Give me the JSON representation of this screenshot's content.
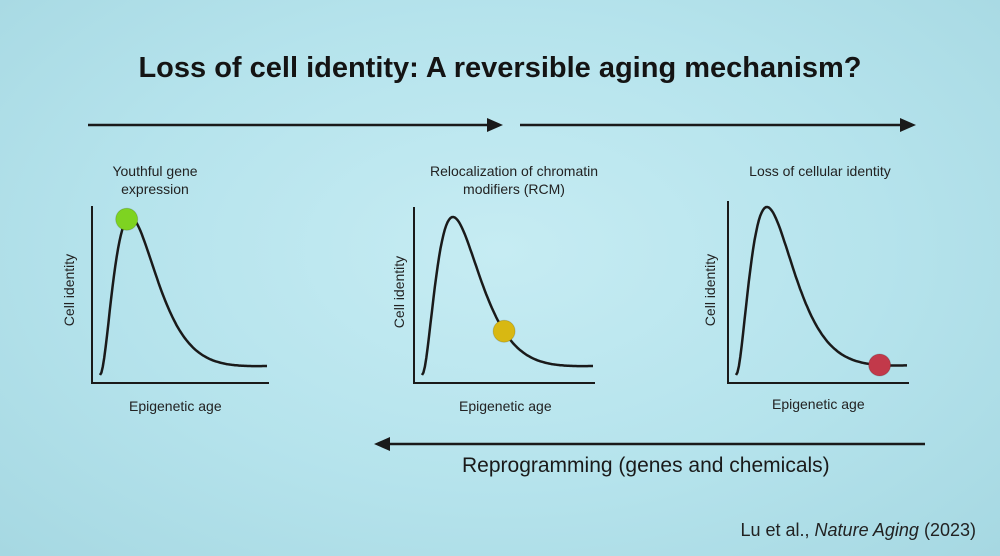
{
  "title": "Loss of cell identity: A reversible aging mechanism?",
  "panels": [
    {
      "title": "Youthful gene expression",
      "title_line1": "Youthful gene",
      "title_line2": "expression",
      "ylabel": "Cell identity",
      "xlabel": "Epigenetic age",
      "dot_color": "#7ed321",
      "dot_position": 0.16
    },
    {
      "title": "Relocalization of chromatin modifiers (RCM)",
      "title_line1": "Relocalization of chromatin",
      "title_line2": "modifiers (RCM)",
      "ylabel": "Cell identity",
      "xlabel": "Epigenetic age",
      "dot_color": "#d8b812",
      "dot_position": 0.48
    },
    {
      "title": "Loss of cellular identity",
      "title_line1": "Loss of cellular identity",
      "title_line2": "",
      "ylabel": "Cell identity",
      "xlabel": "Epigenetic age",
      "dot_color": "#c2394a",
      "dot_position": 0.84
    }
  ],
  "reprogramming_label": "Reprogramming (genes and chemicals)",
  "citation": {
    "authors": "Lu et al., ",
    "journal": "Nature Aging",
    "year": " (2023)"
  },
  "colors": {
    "background": "#b8e5ee",
    "text": "#141414",
    "curve": "#1a1a1a"
  }
}
